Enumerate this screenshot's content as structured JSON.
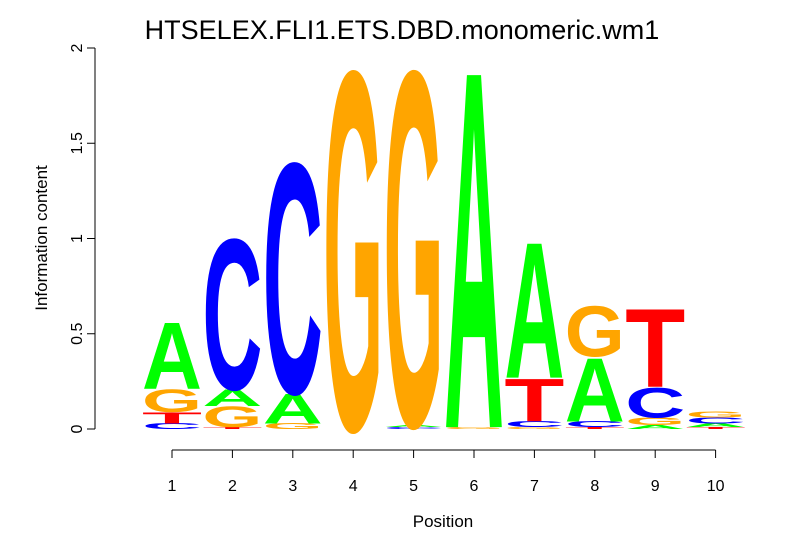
{
  "chart_data": {
    "type": "sequence-logo",
    "title": "HTSELEX.FLI1.ETS.DBD.monomeric.wm1",
    "xlabel": "Position",
    "ylabel": "Information content",
    "ylim": [
      0,
      2
    ],
    "y_ticks": [
      "0",
      "0.5",
      "1",
      "1.5",
      "2"
    ],
    "x_ticks": [
      "1",
      "2",
      "3",
      "4",
      "5",
      "6",
      "7",
      "8",
      "9",
      "10"
    ],
    "colors": {
      "A": "#00ff00",
      "C": "#0000ff",
      "G": "#ffa500",
      "T": "#ff0000"
    },
    "positions": [
      {
        "position": 1,
        "letters": [
          {
            "base": "C",
            "height": 0.03
          },
          {
            "base": "T",
            "height": 0.06
          },
          {
            "base": "G",
            "height": 0.12
          },
          {
            "base": "A",
            "height": 0.36
          }
        ]
      },
      {
        "position": 2,
        "letters": [
          {
            "base": "T",
            "height": 0.01
          },
          {
            "base": "G",
            "height": 0.11
          },
          {
            "base": "A",
            "height": 0.09
          },
          {
            "base": "C",
            "height": 0.81
          }
        ]
      },
      {
        "position": 3,
        "letters": [
          {
            "base": "G",
            "height": 0.03
          },
          {
            "base": "A",
            "height": 0.16
          },
          {
            "base": "C",
            "height": 1.24
          }
        ]
      },
      {
        "position": 4,
        "letters": [
          {
            "base": "G",
            "height": 1.93
          }
        ]
      },
      {
        "position": 5,
        "letters": [
          {
            "base": "C",
            "height": 0.01
          },
          {
            "base": "A",
            "height": 0.01
          },
          {
            "base": "G",
            "height": 1.91
          }
        ]
      },
      {
        "position": 6,
        "letters": [
          {
            "base": "G",
            "height": 0.01
          },
          {
            "base": "A",
            "height": 1.92
          }
        ]
      },
      {
        "position": 7,
        "letters": [
          {
            "base": "G",
            "height": 0.01
          },
          {
            "base": "C",
            "height": 0.03
          },
          {
            "base": "T",
            "height": 0.23
          },
          {
            "base": "A",
            "height": 0.73
          }
        ]
      },
      {
        "position": 8,
        "letters": [
          {
            "base": "T",
            "height": 0.01
          },
          {
            "base": "C",
            "height": 0.03
          },
          {
            "base": "A",
            "height": 0.34
          },
          {
            "base": "G",
            "height": 0.27
          }
        ]
      },
      {
        "position": 9,
        "letters": [
          {
            "base": "A",
            "height": 0.02
          },
          {
            "base": "G",
            "height": 0.04
          },
          {
            "base": "C",
            "height": 0.16
          },
          {
            "base": "T",
            "height": 0.42
          }
        ]
      },
      {
        "position": 10,
        "letters": [
          {
            "base": "T",
            "height": 0.01
          },
          {
            "base": "A",
            "height": 0.02
          },
          {
            "base": "C",
            "height": 0.03
          },
          {
            "base": "G",
            "height": 0.03
          }
        ]
      }
    ]
  }
}
